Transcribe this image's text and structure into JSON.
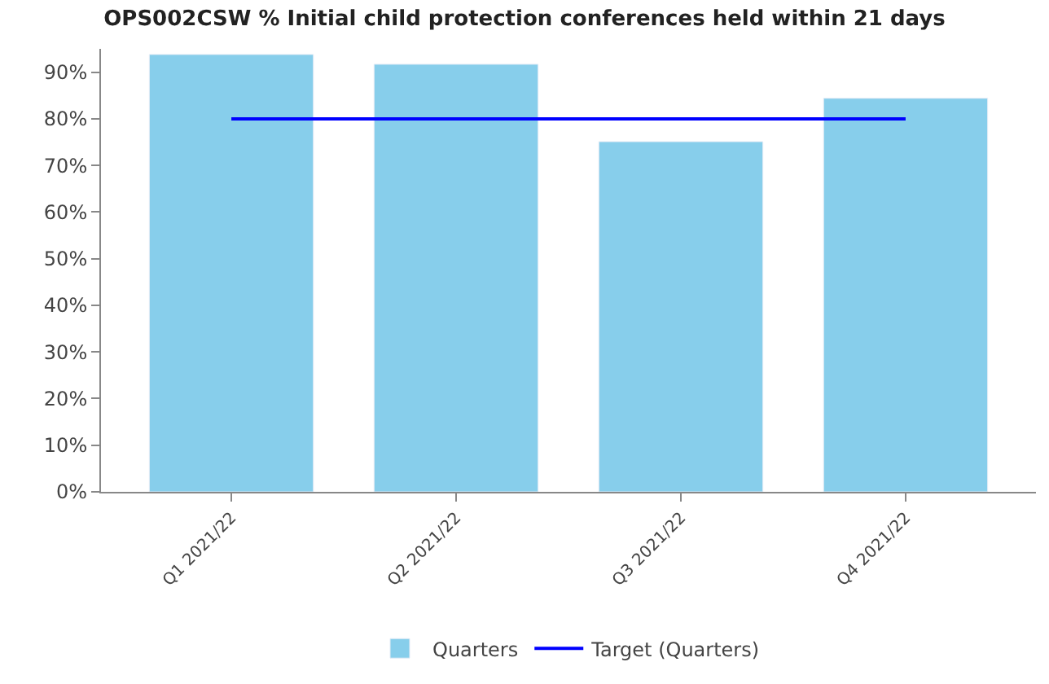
{
  "chart_data": {
    "type": "bar",
    "title": "OPS002CSW % Initial child protection conferences held within 21 days",
    "categories": [
      "Q1 2021/22",
      "Q2 2021/22",
      "Q3 2021/22",
      "Q4 2021/22"
    ],
    "series": [
      {
        "name": "Quarters",
        "color": "#87ceeb",
        "values": [
          93.8,
          91.7,
          75.1,
          84.4
        ]
      },
      {
        "name": "Target (Quarters)",
        "type": "line",
        "color": "#0000ff",
        "values": [
          80,
          80,
          80,
          80
        ]
      }
    ],
    "ylim": [
      0,
      95
    ],
    "yticks": [
      {
        "value": 0,
        "label": "0%"
      },
      {
        "value": 10,
        "label": "10%"
      },
      {
        "value": 20,
        "label": "20%"
      },
      {
        "value": 30,
        "label": "30%"
      },
      {
        "value": 40,
        "label": "40%"
      },
      {
        "value": 50,
        "label": "50%"
      },
      {
        "value": 60,
        "label": "60%"
      },
      {
        "value": 70,
        "label": "70%"
      },
      {
        "value": 80,
        "label": "80%"
      },
      {
        "value": 90,
        "label": "90%"
      }
    ],
    "legend": "bottom",
    "marker": "none"
  }
}
